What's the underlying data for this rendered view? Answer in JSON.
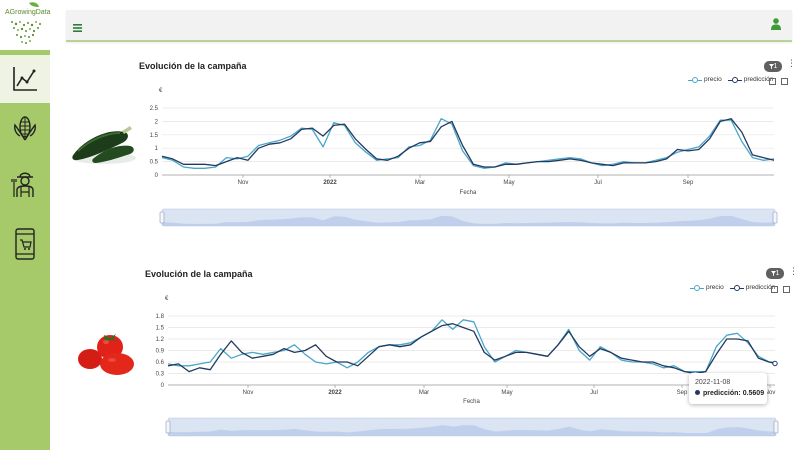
{
  "app": {
    "logo_text": "AGrowingData"
  },
  "colors": {
    "sidebar": "#a6c96a",
    "precio": "#4aa6c9",
    "prediccion": "#233a5e",
    "accent_green": "#3f9b35"
  },
  "sidebar": {
    "items": [
      {
        "icon": "trend-chart-icon",
        "active": true
      },
      {
        "icon": "corn-icon",
        "active": false
      },
      {
        "icon": "farmer-icon",
        "active": false
      },
      {
        "icon": "mobile-shop-icon",
        "active": false
      }
    ]
  },
  "header": {
    "menu_icon": "hamburger-icon",
    "user_icon": "user-icon"
  },
  "charts": [
    {
      "title": "Evolución de la campaña",
      "filter_badge": "1",
      "product_icon": "zucchini-icon"
    },
    {
      "title": "Evolución de la campaña",
      "filter_badge": "1",
      "product_icon": "tomato-icon"
    }
  ],
  "tooltip": {
    "date": "2022-11-08",
    "label": "predicción:",
    "value": "0.5609"
  },
  "chart_data": [
    {
      "type": "line",
      "title": "Evolución de la campaña",
      "xlabel": "Fecha",
      "ylabel": "€",
      "ylim": [
        0,
        2.5
      ],
      "yticks": [
        0,
        0.5,
        1,
        1.5,
        2,
        2.5
      ],
      "xticks": [
        "Nov",
        "2022",
        "Mar",
        "May",
        "Jul",
        "Sep"
      ],
      "grid": true,
      "legend": "top-right",
      "x": [
        "2021-10-01",
        "2021-10-08",
        "2021-10-15",
        "2021-10-22",
        "2021-10-29",
        "2021-11-05",
        "2021-11-12",
        "2021-11-19",
        "2021-11-26",
        "2021-12-03",
        "2021-12-10",
        "2021-12-17",
        "2021-12-24",
        "2021-12-31",
        "2022-01-07",
        "2022-01-14",
        "2022-01-21",
        "2022-01-28",
        "2022-02-04",
        "2022-02-11",
        "2022-02-18",
        "2022-02-25",
        "2022-03-04",
        "2022-03-11",
        "2022-03-18",
        "2022-03-25",
        "2022-04-01",
        "2022-04-08",
        "2022-04-15",
        "2022-04-22",
        "2022-04-29",
        "2022-05-06",
        "2022-05-13",
        "2022-05-20",
        "2022-05-27",
        "2022-06-03",
        "2022-06-10",
        "2022-06-17",
        "2022-06-24",
        "2022-07-01",
        "2022-07-08",
        "2022-07-15",
        "2022-07-22",
        "2022-07-29",
        "2022-08-05",
        "2022-08-12",
        "2022-08-19",
        "2022-08-26",
        "2022-09-02",
        "2022-09-09",
        "2022-09-16",
        "2022-09-23",
        "2022-09-30",
        "2022-10-07",
        "2022-10-14",
        "2022-10-21",
        "2022-10-28",
        "2022-11-04"
      ],
      "series": [
        {
          "name": "precio",
          "values": [
            0.65,
            0.55,
            0.3,
            0.25,
            0.25,
            0.3,
            0.65,
            0.6,
            0.7,
            1.1,
            1.2,
            1.3,
            1.45,
            1.75,
            1.7,
            1.05,
            1.95,
            1.85,
            1.2,
            0.85,
            0.55,
            0.6,
            0.65,
            1.05,
            1.1,
            1.3,
            2.1,
            1.9,
            0.9,
            0.35,
            0.25,
            0.3,
            0.45,
            0.4,
            0.45,
            0.5,
            0.55,
            0.6,
            0.65,
            0.6,
            0.45,
            0.35,
            0.4,
            0.5,
            0.45,
            0.45,
            0.55,
            0.65,
            0.85,
            0.95,
            1.05,
            1.45,
            2.05,
            2.05,
            1.25,
            0.65,
            0.55,
            0.6
          ]
        },
        {
          "name": "predicción",
          "values": [
            0.7,
            0.6,
            0.4,
            0.4,
            0.4,
            0.35,
            0.5,
            0.65,
            0.55,
            1.0,
            1.15,
            1.2,
            1.35,
            1.7,
            1.75,
            1.45,
            1.85,
            1.9,
            1.35,
            0.95,
            0.6,
            0.55,
            0.7,
            1.0,
            1.2,
            1.25,
            1.8,
            2.0,
            1.1,
            0.4,
            0.3,
            0.3,
            0.4,
            0.4,
            0.45,
            0.5,
            0.5,
            0.55,
            0.6,
            0.55,
            0.45,
            0.4,
            0.35,
            0.45,
            0.45,
            0.45,
            0.5,
            0.6,
            0.95,
            0.9,
            0.95,
            1.35,
            2.0,
            2.1,
            1.6,
            0.75,
            0.65,
            0.55
          ]
        }
      ]
    },
    {
      "type": "line",
      "title": "Evolución de la campaña",
      "xlabel": "Fecha",
      "ylabel": "€",
      "ylim": [
        0,
        1.8
      ],
      "yticks": [
        0,
        0.3,
        0.6,
        0.9,
        1.2,
        1.5,
        1.8
      ],
      "xticks": [
        "Nov",
        "2022",
        "Mar",
        "May",
        "Jul",
        "Sep",
        "Nov"
      ],
      "grid": true,
      "legend": "top-right",
      "x": [
        "2021-10-01",
        "2021-10-08",
        "2021-10-15",
        "2021-10-22",
        "2021-10-29",
        "2021-11-05",
        "2021-11-12",
        "2021-11-19",
        "2021-11-26",
        "2021-12-03",
        "2021-12-10",
        "2021-12-17",
        "2021-12-24",
        "2021-12-31",
        "2022-01-07",
        "2022-01-14",
        "2022-01-21",
        "2022-01-28",
        "2022-02-04",
        "2022-02-11",
        "2022-02-18",
        "2022-02-25",
        "2022-03-04",
        "2022-03-11",
        "2022-03-18",
        "2022-03-25",
        "2022-04-01",
        "2022-04-08",
        "2022-04-15",
        "2022-04-22",
        "2022-04-29",
        "2022-05-06",
        "2022-05-13",
        "2022-05-20",
        "2022-05-27",
        "2022-06-03",
        "2022-06-10",
        "2022-06-17",
        "2022-06-24",
        "2022-07-01",
        "2022-07-08",
        "2022-07-15",
        "2022-07-22",
        "2022-07-29",
        "2022-08-05",
        "2022-08-12",
        "2022-08-19",
        "2022-08-26",
        "2022-09-02",
        "2022-09-09",
        "2022-09-16",
        "2022-09-23",
        "2022-09-30",
        "2022-10-07",
        "2022-10-14",
        "2022-10-21",
        "2022-10-28",
        "2022-11-04",
        "2022-11-08"
      ],
      "series": [
        {
          "name": "precio",
          "values": [
            0.55,
            0.5,
            0.5,
            0.55,
            0.6,
            0.95,
            0.7,
            0.8,
            0.85,
            0.8,
            0.85,
            0.9,
            1.05,
            0.8,
            0.6,
            0.55,
            0.6,
            0.45,
            0.6,
            0.85,
            1.0,
            1.05,
            1.05,
            1.1,
            1.25,
            1.4,
            1.7,
            1.45,
            1.7,
            1.65,
            1.0,
            0.6,
            0.75,
            0.9,
            0.85,
            0.8,
            0.75,
            1.05,
            1.45,
            0.9,
            0.65,
            1.0,
            0.85,
            0.65,
            0.6,
            0.6,
            0.55,
            0.45,
            0.5,
            0.35,
            0.35,
            0.35,
            1.0,
            1.3,
            1.35,
            1.1,
            0.75,
            0.6,
            0.6
          ]
        },
        {
          "name": "predicción",
          "values": [
            0.5,
            0.55,
            0.35,
            0.45,
            0.4,
            0.8,
            1.15,
            0.85,
            0.7,
            0.75,
            0.8,
            0.95,
            0.85,
            0.9,
            1.05,
            0.75,
            0.6,
            0.6,
            0.5,
            0.75,
            1.0,
            1.05,
            1.0,
            1.05,
            1.25,
            1.4,
            1.55,
            1.6,
            1.5,
            1.4,
            0.85,
            0.65,
            0.75,
            0.85,
            0.85,
            0.8,
            0.75,
            1.05,
            1.4,
            1.0,
            0.75,
            0.95,
            0.85,
            0.7,
            0.65,
            0.6,
            0.6,
            0.5,
            0.45,
            0.35,
            0.3,
            0.35,
            0.8,
            1.2,
            1.2,
            1.15,
            0.7,
            0.6,
            0.5609
          ]
        }
      ]
    }
  ]
}
